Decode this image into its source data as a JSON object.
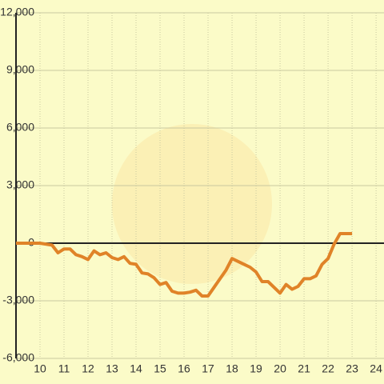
{
  "chart_data": {
    "type": "line",
    "x": [
      9,
      10,
      10.5,
      10.75,
      11,
      11.25,
      11.5,
      11.75,
      12,
      12.25,
      12.5,
      12.75,
      13,
      13.25,
      13.5,
      13.75,
      14,
      14.25,
      14.5,
      14.75,
      15,
      15.25,
      15.5,
      15.75,
      16,
      16.25,
      16.5,
      16.75,
      17,
      17.25,
      17.5,
      17.75,
      18,
      18.25,
      18.5,
      18.75,
      19,
      19.25,
      19.5,
      19.75,
      20,
      20.25,
      20.5,
      20.75,
      21,
      21.25,
      21.5,
      21.75,
      22,
      22.25,
      22.5,
      23
    ],
    "values": [
      0,
      0,
      -100,
      -500,
      -300,
      -300,
      -600,
      -700,
      -850,
      -400,
      -600,
      -500,
      -750,
      -850,
      -700,
      -1050,
      -1100,
      -1550,
      -1600,
      -1800,
      -2150,
      -2050,
      -2500,
      -2600,
      -2600,
      -2550,
      -2450,
      -2750,
      -2750,
      -2300,
      -1850,
      -1400,
      -800,
      -950,
      -1100,
      -1250,
      -1500,
      -2000,
      -2000,
      -2300,
      -2600,
      -2150,
      -2400,
      -2250,
      -1850,
      -1850,
      -1700,
      -1100,
      -800,
      -50,
      500,
      500
    ],
    "color": "#e08328",
    "xlim": [
      9,
      24.33
    ],
    "xticks": [
      10,
      11,
      12,
      13,
      14,
      15,
      16,
      17,
      18,
      19,
      20,
      21,
      22,
      23,
      24
    ],
    "ylim": [
      -6000,
      12000
    ],
    "yticks": [
      {
        "value": -6000,
        "label": "-6,000"
      },
      {
        "value": -3000,
        "label": "-3,000"
      },
      0,
      {
        "value": 3000,
        "label": "3,000"
      },
      {
        "value": 6000,
        "label": "6,000"
      },
      {
        "value": 9000,
        "label": "9,000"
      },
      {
        "value": 12000,
        "label": "12,000"
      }
    ],
    "grid": true
  }
}
